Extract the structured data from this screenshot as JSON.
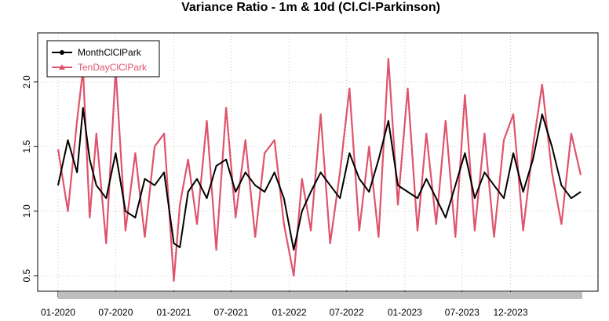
{
  "chart_data": {
    "type": "line",
    "title": "Variance Ratio - 1m & 10d (Cl.Cl-Parkinson)",
    "xlabel": "",
    "ylabel": "",
    "x_range": [
      "2020-01-01",
      "2024-07-15"
    ],
    "x_tick_labels": [
      "01-2020",
      "07-2020",
      "01-2021",
      "07-2021",
      "01-2022",
      "07-2022",
      "01-2023",
      "07-2023",
      "12-2023"
    ],
    "x_tick_dates": [
      "2020-01-01",
      "2020-07-01",
      "2021-01-01",
      "2021-07-01",
      "2022-01-01",
      "2022-07-01",
      "2023-01-01",
      "2023-07-01",
      "2023-12-01"
    ],
    "y_ticks": [
      0.5,
      1.0,
      1.5,
      2.0
    ],
    "y_tick_labels": [
      "0.5",
      "1.0",
      "1.5",
      "2.0"
    ],
    "ylim": [
      0.38,
      2.38
    ],
    "grid": true,
    "legend_position": "top-left",
    "series": [
      {
        "name": "MonthClClPark",
        "color": "#000000",
        "x": [
          "2020-01-01",
          "2020-02-01",
          "2020-03-01",
          "2020-03-20",
          "2020-04-10",
          "2020-05-01",
          "2020-06-01",
          "2020-07-01",
          "2020-08-01",
          "2020-09-01",
          "2020-10-01",
          "2020-11-01",
          "2020-12-01",
          "2021-01-01",
          "2021-01-20",
          "2021-02-15",
          "2021-03-15",
          "2021-04-15",
          "2021-05-15",
          "2021-06-15",
          "2021-07-15",
          "2021-08-15",
          "2021-09-15",
          "2021-10-15",
          "2021-11-15",
          "2021-12-15",
          "2022-01-15",
          "2022-02-10",
          "2022-03-10",
          "2022-04-10",
          "2022-05-10",
          "2022-06-10",
          "2022-07-10",
          "2022-08-10",
          "2022-09-10",
          "2022-10-10",
          "2022-11-10",
          "2022-12-10",
          "2023-01-10",
          "2023-02-10",
          "2023-03-10",
          "2023-04-10",
          "2023-05-10",
          "2023-06-10",
          "2023-07-10",
          "2023-08-10",
          "2023-09-10",
          "2023-10-10",
          "2023-11-10",
          "2023-12-10",
          "2024-01-10",
          "2024-02-10",
          "2024-03-10",
          "2024-04-10",
          "2024-05-10",
          "2024-06-10",
          "2024-07-10"
        ],
        "values": [
          1.2,
          1.55,
          1.3,
          1.8,
          1.4,
          1.2,
          1.1,
          1.45,
          1.0,
          0.95,
          1.25,
          1.2,
          1.3,
          0.75,
          0.72,
          1.15,
          1.25,
          1.1,
          1.35,
          1.4,
          1.15,
          1.3,
          1.2,
          1.15,
          1.3,
          1.1,
          0.7,
          1.0,
          1.15,
          1.3,
          1.2,
          1.1,
          1.45,
          1.25,
          1.15,
          1.4,
          1.7,
          1.2,
          1.15,
          1.1,
          1.25,
          1.1,
          0.95,
          1.2,
          1.45,
          1.1,
          1.3,
          1.2,
          1.1,
          1.45,
          1.15,
          1.4,
          1.75,
          1.5,
          1.2,
          1.1,
          1.15
        ]
      },
      {
        "name": "TenDayClClPark",
        "color": "#DF536B",
        "x": [
          "2020-01-01",
          "2020-02-01",
          "2020-03-01",
          "2020-03-20",
          "2020-04-10",
          "2020-05-01",
          "2020-06-01",
          "2020-07-01",
          "2020-08-01",
          "2020-09-01",
          "2020-10-01",
          "2020-11-01",
          "2020-12-01",
          "2021-01-01",
          "2021-01-20",
          "2021-02-15",
          "2021-03-15",
          "2021-04-15",
          "2021-05-15",
          "2021-06-15",
          "2021-07-15",
          "2021-08-15",
          "2021-09-15",
          "2021-10-15",
          "2021-11-15",
          "2021-12-15",
          "2022-01-15",
          "2022-02-10",
          "2022-03-10",
          "2022-04-10",
          "2022-05-10",
          "2022-06-10",
          "2022-07-10",
          "2022-08-10",
          "2022-09-10",
          "2022-10-10",
          "2022-11-10",
          "2022-12-10",
          "2023-01-10",
          "2023-02-10",
          "2023-03-10",
          "2023-04-10",
          "2023-05-10",
          "2023-06-10",
          "2023-07-10",
          "2023-08-10",
          "2023-09-10",
          "2023-10-10",
          "2023-11-10",
          "2023-12-10",
          "2024-01-10",
          "2024-02-10",
          "2024-03-10",
          "2024-04-10",
          "2024-05-10",
          "2024-06-10",
          "2024-07-10"
        ],
        "values": [
          1.48,
          1.0,
          1.7,
          2.1,
          0.95,
          1.6,
          0.75,
          2.1,
          0.85,
          1.45,
          0.8,
          1.5,
          1.6,
          0.46,
          1.05,
          1.4,
          0.9,
          1.7,
          0.7,
          1.8,
          0.95,
          1.55,
          0.8,
          1.45,
          1.55,
          0.9,
          0.5,
          1.25,
          0.85,
          1.75,
          0.75,
          1.3,
          1.95,
          0.85,
          1.5,
          0.8,
          2.18,
          1.05,
          1.95,
          0.85,
          1.6,
          0.9,
          1.7,
          0.8,
          1.9,
          0.85,
          1.6,
          0.8,
          1.55,
          1.75,
          0.85,
          1.5,
          1.98,
          1.3,
          0.9,
          1.6,
          1.28
        ]
      }
    ]
  }
}
